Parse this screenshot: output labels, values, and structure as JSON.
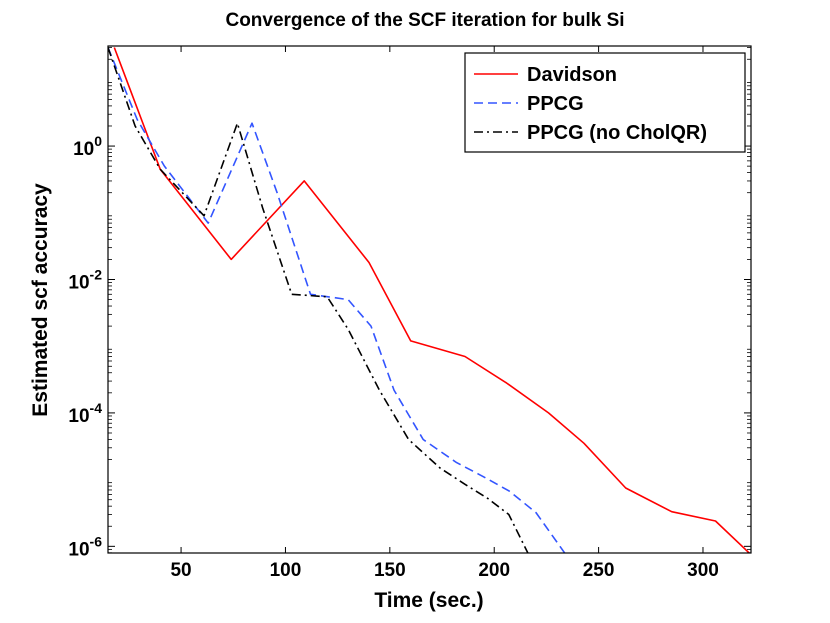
{
  "chart_data": {
    "type": "line",
    "title": "Convergence of the SCF iteration for bulk Si",
    "xlabel": "Time (sec.)",
    "ylabel": "Estimated scf accuracy",
    "xlim": [
      15,
      323
    ],
    "ylim_log10": [
      -6.1,
      1.5
    ],
    "yscale": "log",
    "xticks": [
      50,
      100,
      150,
      200,
      250,
      300
    ],
    "xtick_labels": [
      "50",
      "100",
      "150",
      "200",
      "250",
      "300"
    ],
    "yticks": [
      0,
      -2,
      -4,
      -6
    ],
    "ytick_labels": [
      {
        "base": "10",
        "exp": "0"
      },
      {
        "base": "10",
        "exp": "-2"
      },
      {
        "base": "10",
        "exp": "-4"
      },
      {
        "base": "10",
        "exp": "-6"
      }
    ],
    "grid": false,
    "legend_position": "top-right",
    "series": [
      {
        "name": "Davidson",
        "color": "#ff0000",
        "dash": "solid",
        "x": [
          18,
          40,
          74,
          109,
          140,
          160,
          186,
          206,
          226,
          243,
          263,
          285,
          306,
          323
        ],
        "y": [
          30,
          0.45,
          0.02,
          0.3,
          0.018,
          0.0012,
          0.0007,
          0.00028,
          0.0001,
          3.5e-05,
          7.5e-06,
          3.3e-06,
          2.4e-06,
          7.5e-07
        ]
      },
      {
        "name": "PPCG",
        "color": "#3355ff",
        "dash": "dashed",
        "x": [
          15,
          29,
          42,
          63,
          84,
          96,
          112,
          130,
          141,
          152,
          166,
          182,
          195,
          207,
          220,
          235
        ],
        "y": [
          30,
          2.5,
          0.5,
          0.07,
          2.2,
          0.2,
          0.006,
          0.005,
          0.002,
          0.00022,
          4e-05,
          1.8e-05,
          1.1e-05,
          6.8e-06,
          3.2e-06,
          7e-07
        ]
      },
      {
        "name": "PPCG (no CholQR)",
        "color": "#000000",
        "dash": "dashdot",
        "x": [
          15,
          28,
          40,
          61,
          77,
          89,
          103,
          120,
          130,
          145,
          159,
          174,
          186,
          197,
          207,
          217
        ],
        "y": [
          30,
          2.0,
          0.45,
          0.09,
          2.2,
          0.12,
          0.006,
          0.0055,
          0.0018,
          0.00022,
          4e-05,
          1.5e-05,
          8.5e-06,
          5.2e-06,
          3e-06,
          7e-07
        ]
      }
    ]
  }
}
